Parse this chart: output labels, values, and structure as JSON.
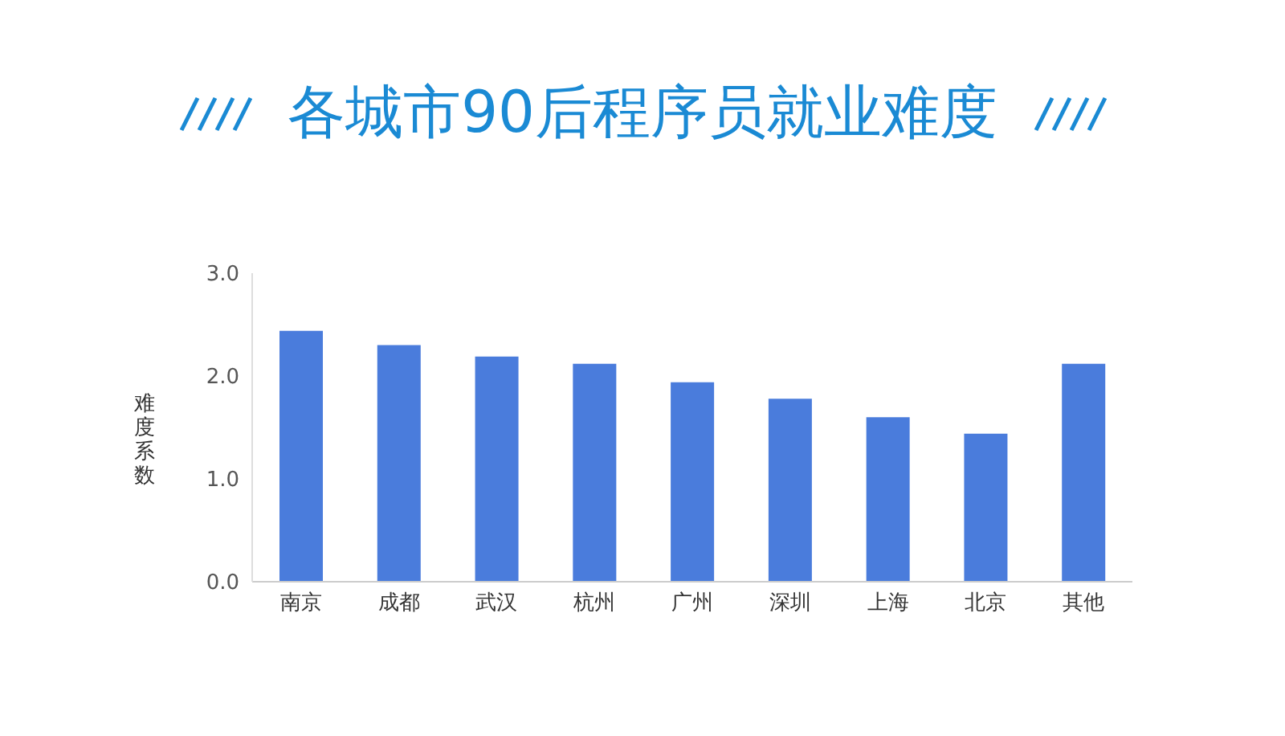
{
  "chart_data": {
    "type": "bar",
    "title": "各城市90后程序员就业难度",
    "ylabel": "难度系数",
    "categories": [
      "南京",
      "成都",
      "武汉",
      "杭州",
      "广州",
      "深圳",
      "上海",
      "北京",
      "其他"
    ],
    "values": [
      2.44,
      2.3,
      2.19,
      2.12,
      1.94,
      1.78,
      1.6,
      1.44,
      2.12
    ],
    "color": "#4a7cdc",
    "ylim": [
      0,
      3
    ],
    "yticks": [
      {
        "value": 0,
        "label": "0.0"
      },
      {
        "value": 1,
        "label": "1.0"
      },
      {
        "value": 2,
        "label": "2.0"
      },
      {
        "value": 3,
        "label": "3.0"
      }
    ],
    "grid": false
  }
}
